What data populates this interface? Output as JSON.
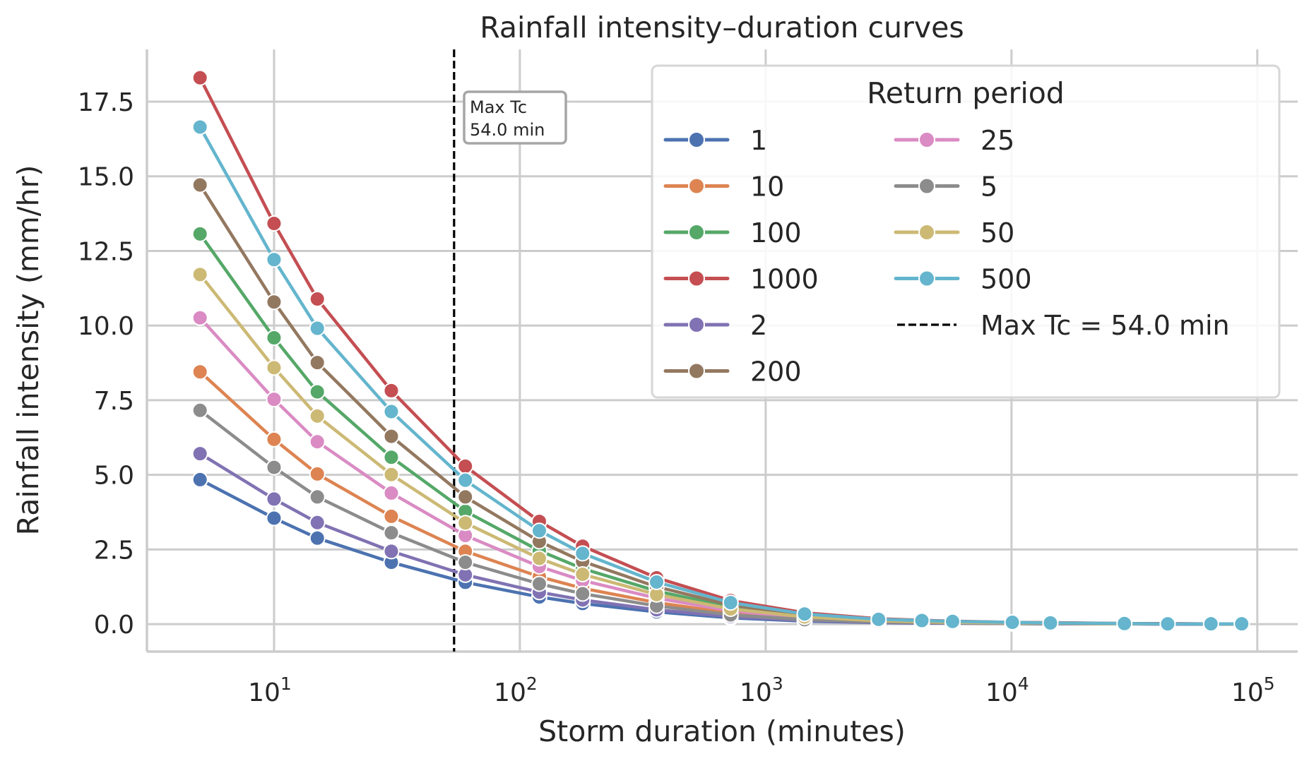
{
  "chart_data": {
    "type": "line",
    "title": "Rainfall intensity–duration curves",
    "xlabel": "Storm duration (minutes)",
    "ylabel": "Rainfall intensity (mm/hr)",
    "xscale": "log",
    "xlim": [
      3.04,
      146000
    ],
    "ylim": [
      -0.92,
      19.25
    ],
    "grid": true,
    "x_ticks": [
      {
        "value": 10,
        "base": "10",
        "exp": "1"
      },
      {
        "value": 100,
        "base": "10",
        "exp": "2"
      },
      {
        "value": 1000,
        "base": "10",
        "exp": "3"
      },
      {
        "value": 10000,
        "base": "10",
        "exp": "4"
      },
      {
        "value": 100000,
        "base": "10",
        "exp": "5"
      }
    ],
    "y_ticks": [
      {
        "value": 0,
        "label": "0.0"
      },
      {
        "value": 2.5,
        "label": "2.5"
      },
      {
        "value": 5,
        "label": "5.0"
      },
      {
        "value": 7.5,
        "label": "7.5"
      },
      {
        "value": 10,
        "label": "10.0"
      },
      {
        "value": 12.5,
        "label": "12.5"
      },
      {
        "value": 15,
        "label": "15.0"
      },
      {
        "value": 17.5,
        "label": "17.5"
      }
    ],
    "x": [
      5,
      10,
      15,
      30,
      60,
      120,
      180,
      360,
      720,
      1440,
      2880,
      4320,
      5760,
      10080,
      14400,
      28800,
      43200,
      64800,
      86400
    ],
    "series": [
      {
        "name": "1",
        "color": "#4c72b0",
        "values": [
          4.84,
          3.55,
          2.88,
          2.07,
          1.4,
          0.91,
          0.69,
          0.41,
          0.21,
          0.1,
          0.05,
          0.03,
          0.03,
          0.02,
          0.01,
          0.01,
          0.0,
          0.0,
          0.0
        ]
      },
      {
        "name": "10",
        "color": "#dd8452",
        "values": [
          8.45,
          6.19,
          5.03,
          3.61,
          2.44,
          1.59,
          1.2,
          0.72,
          0.37,
          0.17,
          0.08,
          0.06,
          0.05,
          0.03,
          0.02,
          0.01,
          0.01,
          0.01,
          0.0
        ]
      },
      {
        "name": "100",
        "color": "#55a868",
        "values": [
          13.07,
          9.59,
          7.78,
          5.59,
          3.78,
          2.46,
          1.86,
          1.11,
          0.57,
          0.27,
          0.13,
          0.09,
          0.07,
          0.04,
          0.03,
          0.02,
          0.01,
          0.01,
          0.01
        ]
      },
      {
        "name": "1000",
        "color": "#c44e52",
        "values": [
          18.3,
          13.42,
          10.89,
          7.82,
          5.29,
          3.44,
          2.61,
          1.55,
          0.79,
          0.38,
          0.18,
          0.13,
          0.1,
          0.06,
          0.05,
          0.02,
          0.02,
          0.01,
          0.01
        ]
      },
      {
        "name": "2",
        "color": "#8172b3",
        "values": [
          5.71,
          4.19,
          3.4,
          2.44,
          1.65,
          1.07,
          0.81,
          0.48,
          0.25,
          0.12,
          0.06,
          0.04,
          0.03,
          0.02,
          0.01,
          0.01,
          0.0,
          0.0,
          0.0
        ]
      },
      {
        "name": "200",
        "color": "#937860",
        "values": [
          14.71,
          10.79,
          8.76,
          6.29,
          4.26,
          2.77,
          2.1,
          1.25,
          0.64,
          0.3,
          0.14,
          0.1,
          0.08,
          0.05,
          0.04,
          0.02,
          0.01,
          0.01,
          0.01
        ]
      },
      {
        "name": "25",
        "color": "#da8bc3",
        "values": [
          10.26,
          7.53,
          6.11,
          4.39,
          2.97,
          1.93,
          1.46,
          0.87,
          0.45,
          0.21,
          0.1,
          0.07,
          0.06,
          0.03,
          0.03,
          0.01,
          0.01,
          0.01,
          0.0
        ]
      },
      {
        "name": "5",
        "color": "#8c8c8c",
        "values": [
          7.16,
          5.25,
          4.26,
          3.06,
          2.07,
          1.35,
          1.02,
          0.61,
          0.31,
          0.15,
          0.07,
          0.05,
          0.04,
          0.02,
          0.02,
          0.01,
          0.01,
          0.0,
          0.0
        ]
      },
      {
        "name": "50",
        "color": "#ccb974",
        "values": [
          11.71,
          8.59,
          6.97,
          5.01,
          3.39,
          2.2,
          1.67,
          0.99,
          0.51,
          0.24,
          0.11,
          0.08,
          0.06,
          0.04,
          0.03,
          0.01,
          0.01,
          0.01,
          0.0
        ]
      },
      {
        "name": "500",
        "color": "#64b5cd",
        "values": [
          16.65,
          12.21,
          9.91,
          7.12,
          4.82,
          3.13,
          2.37,
          1.41,
          0.72,
          0.34,
          0.16,
          0.12,
          0.09,
          0.06,
          0.04,
          0.02,
          0.01,
          0.01,
          0.01
        ]
      }
    ],
    "vline": {
      "x": 54.0,
      "label": "Max Tc = 54.0 min",
      "color": "#000000",
      "style": "dashed"
    },
    "annotation": {
      "lines": [
        "Max Tc",
        "54.0 min"
      ]
    },
    "legend": {
      "title": "Return period",
      "placement": "top-right",
      "columns": 2,
      "entries": [
        "1",
        "10",
        "100",
        "1000",
        "2",
        "200",
        "25",
        "5",
        "50",
        "500",
        "Max Tc = 54.0 min"
      ]
    }
  }
}
